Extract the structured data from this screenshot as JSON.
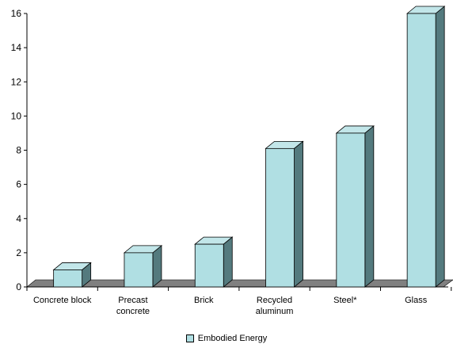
{
  "chart_data": {
    "type": "bar",
    "categories": [
      "Concrete block",
      "Precast concrete",
      "Brick",
      "Recycled aluminum",
      "Steel*",
      "Glass"
    ],
    "series": [
      {
        "name": "Embodied Energy",
        "values": [
          1,
          2,
          2.5,
          8.1,
          9,
          16
        ]
      }
    ],
    "ylim": [
      0,
      16
    ],
    "yticks": [
      0,
      2,
      4,
      6,
      8,
      10,
      12,
      14,
      16
    ],
    "grid": false,
    "three_d": true,
    "legend_position": "bottom",
    "colors": {
      "bar_front": "#B0DFE3",
      "bar_top": "#C2E6E9",
      "bar_side": "#547A7E",
      "floor": "#808080",
      "axis": "#000000"
    }
  },
  "legend": {
    "label": "Embodied Energy"
  }
}
